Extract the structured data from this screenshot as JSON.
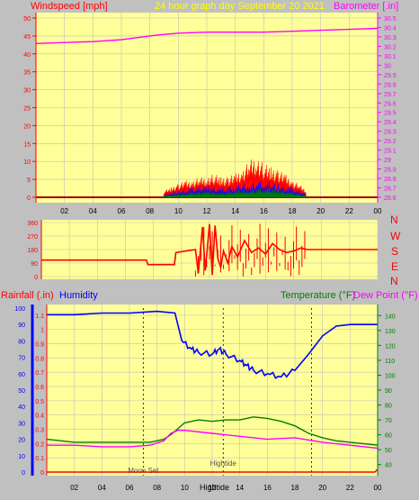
{
  "colors": {
    "background": "#c0c0c0",
    "plot_bg": "#ffff99",
    "grid": "#c0c0c0",
    "red": "#ff0000",
    "magenta": "#ff00ff",
    "blue": "#0000ff",
    "green": "#007f00",
    "yellow": "#ffff00",
    "black": "#000000",
    "dark_red": "#990000"
  },
  "header": {
    "windspeed_label": "Windspeed [mph]",
    "title": "24 hour graph day   September 20 2021",
    "barometer_label": "Barometer [.in]"
  },
  "compass": [
    "N",
    "W",
    "S",
    "E",
    "N"
  ],
  "bottom_labels": {
    "rainfall": "Rainfall (.in)",
    "humidity": "Humidity",
    "temperature": "Temperature (°F)",
    "dewpoint": "Dew Point (°F)"
  },
  "x_ticks": [
    "02",
    "04",
    "06",
    "08",
    "10",
    "12",
    "14",
    "16",
    "18",
    "20",
    "22",
    "00"
  ],
  "tide_markers": [
    {
      "label": "Moon Set",
      "hour": 7.0
    },
    {
      "label": "Hightide",
      "hour": 12.8
    },
    {
      "label": "",
      "hour": 19.2
    }
  ],
  "tide_bottom_label": "Hightide",
  "chart_data": [
    {
      "type": "line",
      "id": "wind_baro",
      "x_range": [
        0,
        24
      ],
      "left_axis": {
        "range": [
          0,
          50
        ],
        "ticks": [
          "0",
          "5",
          "10",
          "15",
          "20",
          "25",
          "30",
          "35",
          "40",
          "45",
          "50"
        ]
      },
      "right_axis": {
        "range": [
          28.6,
          30.5
        ],
        "ticks": [
          "28.6",
          "28.7",
          "28.8",
          "28.9",
          "29",
          "29.1",
          "29.2",
          "29.3",
          "29.4",
          "29.5",
          "29.6",
          "29.7",
          "29.8",
          "29.9",
          "30",
          "30.1",
          "30.2",
          "30.3",
          "30.4",
          "30.5"
        ]
      },
      "series": [
        {
          "name": "Barometer",
          "axis": "right",
          "color": "#ff00ff",
          "x": [
            0,
            2,
            4,
            6,
            7.5,
            8.5,
            10,
            12,
            14,
            16,
            18,
            20,
            22,
            24
          ],
          "y": [
            30.23,
            30.24,
            30.25,
            30.27,
            30.3,
            30.32,
            30.34,
            30.35,
            30.35,
            30.35,
            30.36,
            30.37,
            30.38,
            30.39
          ]
        },
        {
          "name": "Wind gust",
          "axis": "left",
          "color": "#ff0000",
          "x": [
            9,
            9.5,
            10,
            10.5,
            11,
            11.5,
            12,
            12.5,
            13,
            13.5,
            14,
            14.5,
            15,
            15.5,
            16,
            16.5,
            17,
            17.5,
            18,
            18.5,
            19
          ],
          "y": [
            2,
            3,
            4,
            5,
            5,
            6,
            6,
            7,
            6,
            6,
            7,
            8,
            11,
            12,
            10,
            9,
            8,
            7,
            5,
            4,
            2
          ]
        },
        {
          "name": "Wind average",
          "axis": "left",
          "color": "#0000ff",
          "x": [
            9,
            10,
            11,
            12,
            13,
            14,
            15,
            16,
            17,
            18,
            19
          ],
          "y": [
            1,
            2,
            3,
            3.5,
            3,
            3.5,
            4.5,
            5,
            4,
            3,
            1
          ]
        },
        {
          "name": "Wind lull",
          "axis": "left",
          "color": "#007f00",
          "x": [
            9,
            10,
            11,
            12,
            13,
            14,
            15,
            16,
            17,
            18,
            19
          ],
          "y": [
            0.5,
            1,
            1.5,
            2,
            1.5,
            2,
            2.5,
            3,
            2.5,
            1.5,
            0.5
          ]
        }
      ]
    },
    {
      "type": "line",
      "id": "wind_direction",
      "x_range": [
        0,
        24
      ],
      "y_axis": {
        "range": [
          0,
          360
        ],
        "ticks": [
          "0",
          "90",
          "180",
          "270",
          "360"
        ]
      },
      "series": [
        {
          "name": "Direction",
          "color": "#ff0000",
          "x": [
            0,
            7.5,
            7.6,
            9.5,
            9.6,
            11,
            11.2,
            11.5,
            11.7,
            12,
            12.2,
            12.4,
            12.6,
            12.8,
            13,
            13.3,
            13.6,
            14,
            14.5,
            15,
            15.5,
            16,
            16.5,
            17,
            17.5,
            18,
            18.5,
            19,
            24
          ],
          "y": [
            110,
            110,
            80,
            80,
            160,
            180,
            20,
            330,
            40,
            350,
            10,
            340,
            120,
            60,
            170,
            90,
            200,
            130,
            240,
            160,
            190,
            150,
            220,
            180,
            160,
            170,
            190,
            180,
            180
          ]
        }
      ]
    },
    {
      "type": "line",
      "id": "rain_hum_temp",
      "x_range": [
        0,
        24
      ],
      "rain_axis": {
        "range": [
          0,
          1.15
        ],
        "ticks": [
          "0",
          "0.1",
          "0.2",
          "0.3",
          "0.4",
          "0.5",
          "0.6",
          "0.7",
          "0.8",
          "0.9",
          "1",
          "1.1"
        ]
      },
      "humidity_axis": {
        "range": [
          0,
          100
        ],
        "ticks": [
          "0",
          "10",
          "20",
          "30",
          "40",
          "50",
          "60",
          "70",
          "80",
          "90",
          "100"
        ]
      },
      "temp_axis": {
        "range": [
          35,
          145
        ],
        "ticks": [
          "40",
          "50",
          "60",
          "70",
          "80",
          "90",
          "100",
          "110",
          "120",
          "130",
          "140"
        ]
      },
      "series": [
        {
          "name": "Humidity",
          "axis": "humidity",
          "color": "#0000ff",
          "x": [
            0,
            2,
            4,
            6,
            8,
            9.3,
            9.8,
            10.5,
            11,
            12,
            12.5,
            13,
            14,
            14.5,
            15,
            16,
            17,
            18,
            19,
            20,
            21,
            22,
            23,
            24
          ],
          "y": [
            96,
            96,
            97,
            97,
            98,
            97,
            80,
            75,
            73,
            72,
            75,
            72,
            68,
            65,
            62,
            60,
            58,
            62,
            72,
            83,
            89,
            90,
            90,
            90
          ]
        },
        {
          "name": "Temperature",
          "axis": "temp",
          "color": "#007f00",
          "x": [
            0,
            2,
            4,
            6,
            7.5,
            8.5,
            9,
            10,
            11,
            12,
            13,
            14,
            15,
            16,
            17,
            18,
            19,
            20,
            21,
            22,
            23,
            24
          ],
          "y": [
            57,
            55,
            55,
            55,
            55,
            57,
            60,
            68,
            70,
            69,
            70,
            70,
            72,
            71,
            69,
            66,
            61,
            58,
            56,
            55,
            54,
            53
          ]
        },
        {
          "name": "Dew Point",
          "axis": "temp",
          "color": "#ff00ff",
          "x": [
            0,
            2,
            4,
            6,
            7.5,
            8.5,
            9,
            9.5,
            10,
            12,
            14,
            16,
            18,
            20,
            22,
            24
          ],
          "y": [
            53,
            53,
            52,
            52,
            53,
            56,
            61,
            63,
            63,
            61,
            59,
            57,
            58,
            55,
            53,
            51
          ]
        },
        {
          "name": "Rainfall",
          "axis": "rain",
          "color": "#ff0000",
          "x": [
            0,
            23.8,
            24
          ],
          "y": [
            0,
            0,
            0.02
          ]
        }
      ]
    }
  ]
}
